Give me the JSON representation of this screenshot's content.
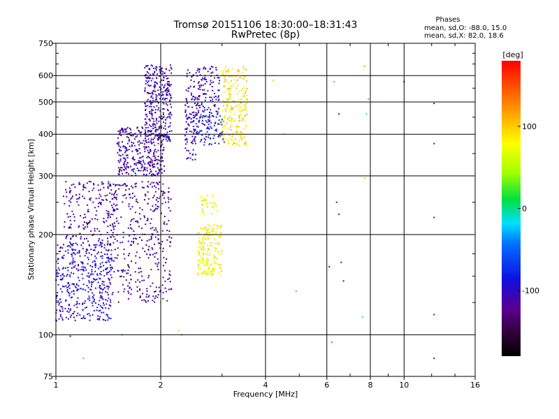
{
  "chart_data": {
    "type": "scatter",
    "title": "Tromsø 20151106 18:30:00–18:31:43",
    "subtitle": "RwPretec (8p)",
    "xlabel": "Frequency [MHz]",
    "ylabel": "Stationary phase Virtual Height [km]",
    "x_scale": "log",
    "y_scale": "log",
    "xlim": [
      1,
      16
    ],
    "ylim": [
      75,
      750
    ],
    "x_ticks": [
      1,
      2,
      4,
      6,
      8,
      10,
      16
    ],
    "x_tick_labels": [
      "1",
      "2",
      "4",
      "6",
      "8",
      "10",
      "16"
    ],
    "y_ticks": [
      75,
      100,
      200,
      300,
      400,
      500,
      600,
      750
    ],
    "y_tick_labels": [
      "75",
      "100",
      "200",
      "300",
      "400",
      "500",
      "600",
      "750"
    ],
    "grid": true,
    "phase_info": {
      "heading": "Phases",
      "o_mode": "mean, sd,O: -88.0, 15.0",
      "x_mode": "mean, sd,X:  82.0, 18.6"
    },
    "colorbar": {
      "label": "[deg]",
      "range": [
        -180,
        180
      ],
      "ticks": [
        100,
        0,
        -100
      ],
      "tick_labels": [
        "100",
        "0",
        "-100"
      ]
    },
    "clusters": [
      {
        "x_range": [
          1.0,
          1.45
        ],
        "y_range": [
          110,
          190
        ],
        "phase": -95,
        "count": 420
      },
      {
        "x_range": [
          1.05,
          1.5
        ],
        "y_range": [
          185,
          290
        ],
        "phase": -115,
        "count": 200
      },
      {
        "x_range": [
          1.4,
          2.15
        ],
        "y_range": [
          125,
          290
        ],
        "phase": -118,
        "count": 380
      },
      {
        "x_range": [
          1.5,
          2.05
        ],
        "y_range": [
          300,
          420
        ],
        "phase": -112,
        "count": 320
      },
      {
        "x_range": [
          1.8,
          2.15
        ],
        "y_range": [
          380,
          650
        ],
        "phase": -108,
        "count": 320
      },
      {
        "x_range": [
          2.35,
          2.55
        ],
        "y_range": [
          330,
          640
        ],
        "phase": -110,
        "count": 110
      },
      {
        "x_range": [
          2.55,
          2.95
        ],
        "y_range": [
          420,
          640
        ],
        "phase": -105,
        "count": 130
      },
      {
        "x_range": [
          2.45,
          3.05
        ],
        "y_range": [
          370,
          460
        ],
        "phase": -85,
        "count": 90
      },
      {
        "x_range": [
          3.0,
          3.55
        ],
        "y_range": [
          370,
          640
        ],
        "phase": 90,
        "count": 220
      },
      {
        "x_range": [
          2.55,
          3.0
        ],
        "y_range": [
          150,
          215
        ],
        "phase": 80,
        "count": 190
      },
      {
        "x_range": [
          2.6,
          2.9
        ],
        "y_range": [
          230,
          265
        ],
        "phase": 75,
        "count": 30
      }
    ],
    "scattered_points": [
      {
        "x": 4.2,
        "y": 580,
        "phase": 100
      },
      {
        "x": 4.5,
        "y": 400,
        "phase": 110
      },
      {
        "x": 6.3,
        "y": 575,
        "phase": 20
      },
      {
        "x": 6.5,
        "y": 460,
        "phase": -110
      },
      {
        "x": 6.4,
        "y": 250,
        "phase": -110
      },
      {
        "x": 6.5,
        "y": 230,
        "phase": -120
      },
      {
        "x": 6.1,
        "y": 160,
        "phase": -120
      },
      {
        "x": 6.6,
        "y": 165,
        "phase": -115
      },
      {
        "x": 6.7,
        "y": 145,
        "phase": -115
      },
      {
        "x": 4.9,
        "y": 135,
        "phase": -10
      },
      {
        "x": 6.2,
        "y": 95,
        "phase": 150
      },
      {
        "x": 7.7,
        "y": 640,
        "phase": 120
      },
      {
        "x": 7.9,
        "y": 510,
        "phase": 130
      },
      {
        "x": 7.8,
        "y": 460,
        "phase": -10
      },
      {
        "x": 7.7,
        "y": 295,
        "phase": 110
      },
      {
        "x": 7.6,
        "y": 113,
        "phase": -20
      },
      {
        "x": 10.0,
        "y": 575,
        "phase": -120
      },
      {
        "x": 12.2,
        "y": 495,
        "phase": -120
      },
      {
        "x": 12.2,
        "y": 375,
        "phase": -130
      },
      {
        "x": 12.2,
        "y": 225,
        "phase": -130
      },
      {
        "x": 12.2,
        "y": 115,
        "phase": -130
      },
      {
        "x": 12.2,
        "y": 85,
        "phase": -130
      },
      {
        "x": 1.1,
        "y": 99,
        "phase": -120
      },
      {
        "x": 1.2,
        "y": 85,
        "phase": -20
      },
      {
        "x": 2.0,
        "y": 125,
        "phase": 60
      },
      {
        "x": 2.25,
        "y": 103,
        "phase": 40
      },
      {
        "x": 2.3,
        "y": 100,
        "phase": 10
      },
      {
        "x": 1.55,
        "y": 100,
        "phase": -30
      }
    ]
  }
}
